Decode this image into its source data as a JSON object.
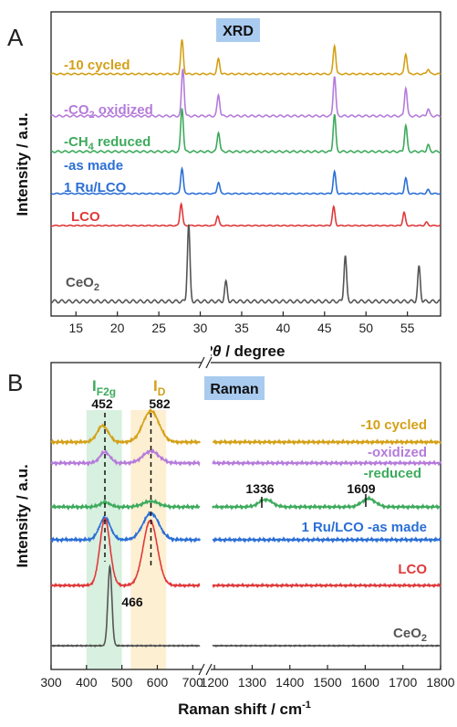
{
  "chart_data": [
    {
      "type": "line",
      "panel_letter": "A",
      "title": "XRD",
      "xlabel_em": "2θ",
      "xlabel_rest": " / degree",
      "ylabel": "Intensity / a.u.",
      "xlim": [
        12,
        59
      ],
      "x_ticks": [
        15,
        20,
        25,
        30,
        35,
        40,
        45,
        50,
        55
      ],
      "series": [
        {
          "name": "-10 cycled",
          "color": "#D4A017",
          "peaks": [
            [
              27.8,
              1.0
            ],
            [
              32.2,
              0.45
            ],
            [
              46.2,
              0.85
            ],
            [
              54.8,
              0.6
            ],
            [
              57.5,
              0.15
            ]
          ]
        },
        {
          "name": "-CO2 oxidized",
          "color": "#B57BDB",
          "peaks": [
            [
              27.9,
              1.0
            ],
            [
              32.2,
              0.45
            ],
            [
              46.2,
              0.85
            ],
            [
              54.8,
              0.6
            ],
            [
              57.5,
              0.15
            ]
          ]
        },
        {
          "name": "-CH4 reduced",
          "color": "#3DAA5C",
          "peaks": [
            [
              27.8,
              1.0
            ],
            [
              32.2,
              0.45
            ],
            [
              46.2,
              0.85
            ],
            [
              54.8,
              0.6
            ],
            [
              57.5,
              0.15
            ]
          ]
        },
        {
          "name": "1 Ru/LCO -as made",
          "color": "#2B6FD6",
          "peaks": [
            [
              27.8,
              1.0
            ],
            [
              32.2,
              0.45
            ],
            [
              46.2,
              0.85
            ],
            [
              54.8,
              0.6
            ],
            [
              57.5,
              0.15
            ]
          ]
        },
        {
          "name": "LCO",
          "color": "#E0393A",
          "peaks": [
            [
              27.7,
              1.0
            ],
            [
              32.1,
              0.45
            ],
            [
              46.1,
              0.85
            ],
            [
              54.6,
              0.6
            ],
            [
              57.3,
              0.15
            ]
          ]
        },
        {
          "name": "CeO2",
          "color": "#555555",
          "peaks": [
            [
              28.6,
              1.0
            ],
            [
              33.1,
              0.25
            ],
            [
              47.5,
              0.6
            ],
            [
              56.4,
              0.45
            ]
          ]
        }
      ]
    },
    {
      "type": "line",
      "panel_letter": "B",
      "title": "Raman",
      "xlabel": "Raman shift / cm",
      "xlabel_sup": "-1",
      "ylabel": "Intensity / a.u.",
      "xlim_left": [
        300,
        725
      ],
      "xlim_right": [
        1190,
        1800
      ],
      "x_ticks_left": [
        300,
        400,
        500,
        600,
        700
      ],
      "x_ticks_right": [
        1200,
        1300,
        1400,
        1500,
        1600,
        1700,
        1800
      ],
      "band_labels": [
        "I",
        "F2g",
        "I",
        "D"
      ],
      "band_ranges": [
        [
          400,
          500
        ],
        [
          525,
          625
        ]
      ],
      "peak_markers": [
        "452",
        "582",
        "466",
        "1336",
        "1609"
      ],
      "series": [
        {
          "name": "-10 cycled",
          "color": "#D4A017"
        },
        {
          "name": "-oxidized",
          "color": "#B57BDB"
        },
        {
          "name": "-reduced",
          "color": "#3DAA5C"
        },
        {
          "name": "1 Ru/LCO -as made",
          "color": "#2B6FD6"
        },
        {
          "name": "LCO",
          "color": "#E0393A"
        },
        {
          "name": "CeO2",
          "color": "#555555"
        }
      ]
    }
  ]
}
